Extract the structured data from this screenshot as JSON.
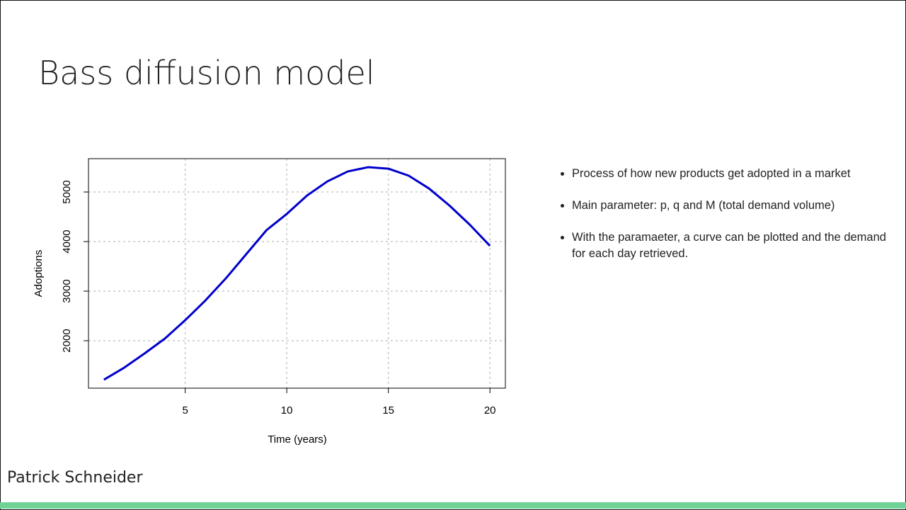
{
  "slide": {
    "title": "Bass diffusion model",
    "bullets": [
      "Process of how new products get adopted in a market",
      "Main parameter: p, q and M (total demand volume)",
      "With the paramaeter, a curve can be plotted and the demand for each day retrieved."
    ],
    "author": "Patrick Schneider"
  },
  "chart_data": {
    "type": "line",
    "x_label": "Time (years)",
    "y_label": "Adoptions",
    "x": [
      1,
      2,
      3,
      4,
      5,
      6,
      7,
      8,
      9,
      10,
      11,
      12,
      13,
      14,
      15,
      16,
      17,
      18,
      19,
      20
    ],
    "series": [
      {
        "color": "#0000cd",
        "values": [
          1214,
          1457,
          1743,
          2043,
          2414,
          2814,
          3257,
          3743,
          4229,
          4557,
          4929,
          5214,
          5414,
          5500,
          5471,
          5329,
          5071,
          4729,
          4343,
          3914
        ]
      }
    ],
    "xlim": [
      0.24,
      20.76
    ],
    "xticks": [
      5,
      10,
      15,
      20
    ],
    "ylim": [
      1043,
      5672
    ],
    "yticks": [
      2000,
      3000,
      4000,
      5000
    ],
    "grid": true
  }
}
